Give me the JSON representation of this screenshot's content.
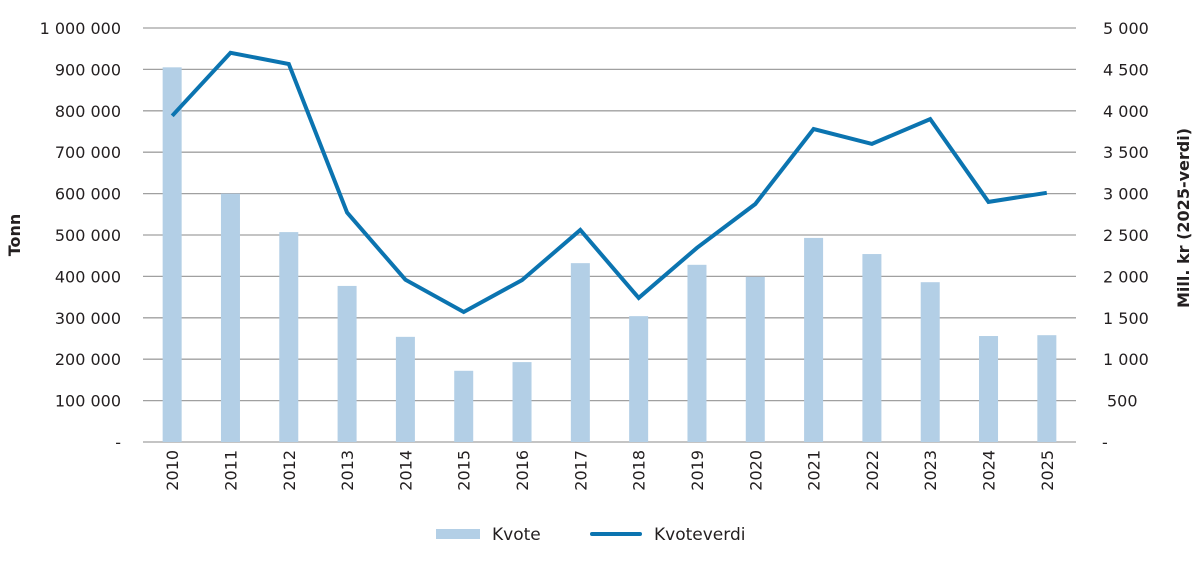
{
  "chart_data": {
    "type": "bar+line",
    "title": "",
    "categories": [
      "2010",
      "2011",
      "2012",
      "2013",
      "2014",
      "2015",
      "2016",
      "2017",
      "2018",
      "2019",
      "2020",
      "2021",
      "2022",
      "2023",
      "2024",
      "2025"
    ],
    "series": [
      {
        "name": "Kvote",
        "type": "bar",
        "axis": "left",
        "color": "#b3cfe6",
        "values": [
          905000,
          600000,
          507000,
          377000,
          254000,
          172000,
          193000,
          432000,
          304000,
          428000,
          399000,
          493000,
          454000,
          386000,
          256000,
          258000
        ]
      },
      {
        "name": "Kvoteverdi",
        "type": "line",
        "axis": "right",
        "color": "#0b74b0",
        "values": [
          3940,
          4700,
          4565,
          2770,
          1960,
          1570,
          1955,
          2560,
          1740,
          2345,
          2875,
          3780,
          3600,
          3900,
          2900,
          3010
        ]
      }
    ],
    "left_axis": {
      "label": "Tonn",
      "ylim": [
        0,
        1000000
      ],
      "ticks": [
        0,
        100000,
        200000,
        300000,
        400000,
        500000,
        600000,
        700000,
        800000,
        900000,
        1000000
      ],
      "tick_labels": [
        "-",
        "100 000",
        "200 000",
        "300 000",
        "400 000",
        "500 000",
        "600 000",
        "700 000",
        "800 000",
        "900 000",
        "1 000 000"
      ]
    },
    "right_axis": {
      "label": "Mill. kr (2025-verdi)",
      "ylim": [
        0,
        5000
      ],
      "ticks": [
        0,
        500,
        1000,
        1500,
        2000,
        2500,
        3000,
        3500,
        4000,
        4500,
        5000
      ],
      "tick_labels": [
        "-",
        "500",
        "1 000",
        "1 500",
        "2 000",
        "2 500",
        "3 000",
        "3 500",
        "4 000",
        "4 500",
        "5 000"
      ]
    },
    "xlabel": "",
    "grid": true,
    "legend": {
      "position": "bottom",
      "entries": [
        "Kvote",
        "Kvoteverdi"
      ]
    }
  },
  "colors": {
    "bar": "#b3cfe6",
    "line": "#0b74b0",
    "grid": "#a0a0a0",
    "text": "#231f20"
  },
  "legend": {
    "kvote_label": "Kvote",
    "kvoteverdi_label": "Kvoteverdi"
  },
  "axes": {
    "left_title": "Tonn",
    "right_title": "Mill. kr (2025-verdi)"
  }
}
